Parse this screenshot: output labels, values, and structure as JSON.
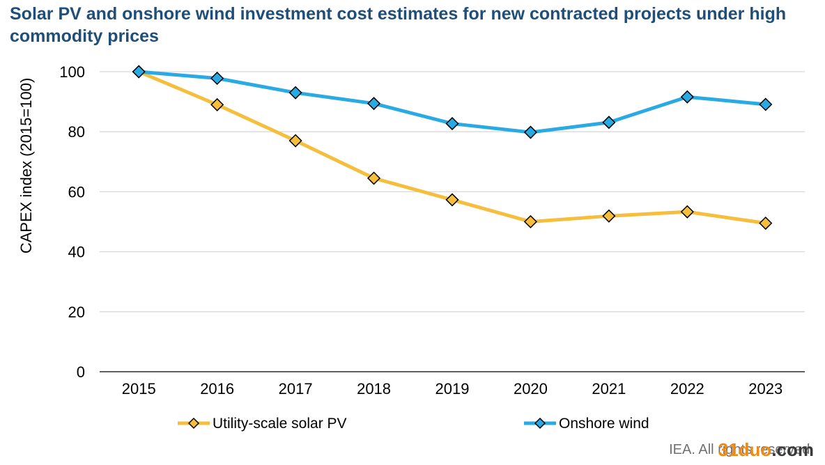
{
  "chart_data": {
    "type": "line",
    "title": "Solar PV and onshore wind investment cost estimates for new contracted projects under high commodity prices",
    "xlabel": "",
    "ylabel": "CAPEX index (2015=100)",
    "ylim": [
      0,
      100
    ],
    "yticks": [
      0,
      20,
      40,
      60,
      80,
      100
    ],
    "categories": [
      "2015",
      "2016",
      "2017",
      "2018",
      "2019",
      "2020",
      "2021",
      "2022",
      "2023"
    ],
    "series": [
      {
        "name": "Utility-scale solar PV",
        "color": "#f5be3c",
        "values": [
          100,
          89,
          77,
          64.5,
          57.3,
          50,
          51.9,
          53.3,
          49.5
        ]
      },
      {
        "name": "Onshore wind",
        "color": "#2aaae2",
        "values": [
          100,
          97.8,
          93,
          89.4,
          82.7,
          79.8,
          83.1,
          91.6,
          89.1
        ]
      }
    ],
    "legend_position": "bottom",
    "grid": true
  },
  "source_note": "IEA. All rights reserved.",
  "watermark": {
    "part1": "31duo",
    "part2": ".com"
  }
}
